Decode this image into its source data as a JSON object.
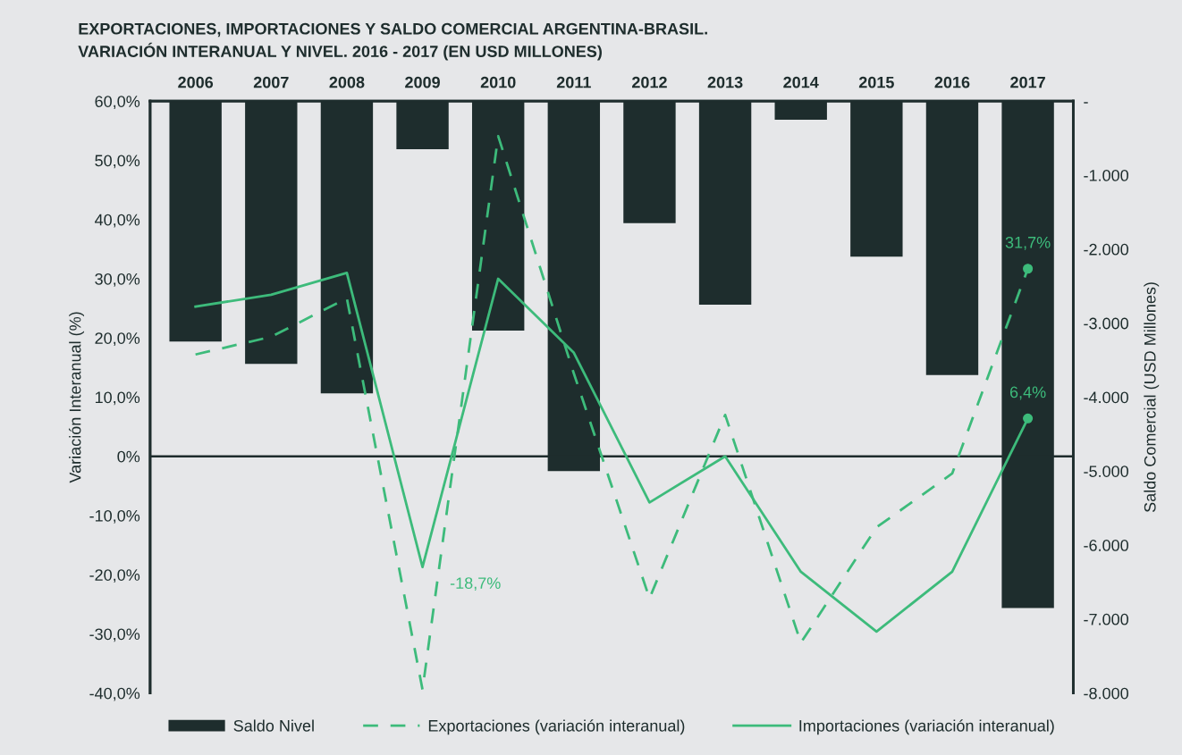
{
  "chart_data": {
    "type": "bar",
    "title": "EXPORTACIONES, IMPORTACIONES Y SALDO COMERCIAL ARGENTINA-BRASIL.\nVARIACIÓN INTERANUAL Y NIVEL. 2016 - 2017 (EN USD MILLONES)",
    "categories": [
      "2006",
      "2007",
      "2008",
      "2009",
      "2010",
      "2011",
      "2012",
      "2013",
      "2014",
      "2015",
      "2016",
      "2017"
    ],
    "ylabel": "Variación Interanual (%)",
    "y2label": "Saldo Comercial (USD Millones)",
    "ylim": [
      -40,
      60
    ],
    "yticks": [
      {
        "value": -40,
        "label": "-40,0%"
      },
      {
        "value": -30,
        "label": "-30,0%"
      },
      {
        "value": -20,
        "label": "-20,0%"
      },
      {
        "value": -10,
        "label": "-10,0%"
      },
      {
        "value": 0,
        "label": "0%"
      },
      {
        "value": 10,
        "label": "10,0%"
      },
      {
        "value": 20,
        "label": "20,0%"
      },
      {
        "value": 30,
        "label": "30,0%"
      },
      {
        "value": 40,
        "label": "40,0%"
      },
      {
        "value": 50,
        "label": "50,0%"
      },
      {
        "value": 60,
        "label": "60,0%"
      }
    ],
    "y2lim": [
      -8000,
      0
    ],
    "y2ticks": [
      {
        "value": -8000,
        "label": "-8.000"
      },
      {
        "value": -7000,
        "label": "-7.000"
      },
      {
        "value": -6000,
        "label": "-6.000"
      },
      {
        "value": -5000,
        "label": "-5.000"
      },
      {
        "value": -4000,
        "label": "-4.000"
      },
      {
        "value": -3000,
        "label": "-3.000"
      },
      {
        "value": -2000,
        "label": "-2.000"
      },
      {
        "value": -1000,
        "label": "-1.000"
      },
      {
        "value": 0,
        "label": "-"
      }
    ],
    "series": [
      {
        "name": "Saldo Nivel",
        "axis": "y2",
        "color": "#1e2d2d",
        "values": [
          -3250,
          -3550,
          -3950,
          -650,
          -3100,
          -5000,
          -1650,
          -2750,
          -250,
          -2100,
          -3700,
          -6850
        ]
      },
      {
        "name": "Exportaciones (variación interanual)",
        "type": "line",
        "line_style": "dashed",
        "color": "#3dbb7b",
        "values": [
          17.2,
          20.2,
          26.7,
          -39.4,
          54.1,
          14,
          -24,
          7,
          -31.5,
          -12,
          -2.9,
          31.7
        ]
      },
      {
        "name": "Importaciones (variación interanual)",
        "type": "line",
        "line_style": "solid",
        "color": "#3dbb7b",
        "values": [
          25.3,
          27.3,
          31,
          -18.7,
          30,
          17.5,
          -7.8,
          0,
          -19.5,
          -29.6,
          -19.5,
          6.4
        ]
      }
    ],
    "ref_lines": [
      {
        "axis": "y",
        "value": 0,
        "label": null,
        "color": "#1e2d2d"
      }
    ],
    "annotations": [
      {
        "text": "-18,7%",
        "x": "2009",
        "y": -18.7
      },
      {
        "text": "31,7%",
        "x": "2017",
        "y": 31.7
      },
      {
        "text": "6,4%",
        "x": "2017",
        "y": 6.4
      }
    ],
    "legend": "bottom",
    "grid": false
  }
}
